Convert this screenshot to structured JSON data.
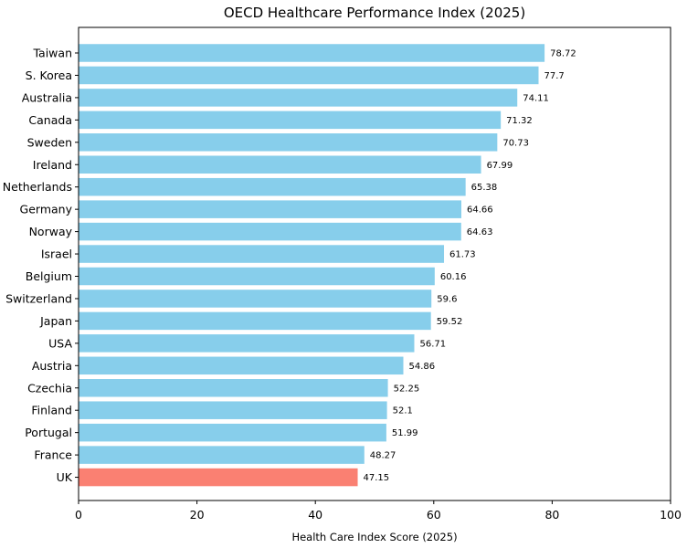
{
  "chart_data": {
    "type": "bar",
    "orientation": "horizontal",
    "title": "OECD Healthcare Performance Index (2025)",
    "xlabel": "Health Care Index Score (2025)",
    "ylabel": "",
    "xlim": [
      0,
      100
    ],
    "xticks": [
      "0",
      "20",
      "40",
      "60",
      "80",
      "100"
    ],
    "grid": false,
    "categories": [
      "Taiwan",
      "S. Korea",
      "Australia",
      "Canada",
      "Sweden",
      "Ireland",
      "Netherlands",
      "Germany",
      "Norway",
      "Israel",
      "Belgium",
      "Switzerland",
      "Japan",
      "USA",
      "Austria",
      "Czechia",
      "Finland",
      "Portugal",
      "France",
      "UK"
    ],
    "values": [
      78.72,
      77.7,
      74.11,
      71.32,
      70.73,
      67.99,
      65.38,
      64.66,
      64.63,
      61.73,
      60.16,
      59.6,
      59.52,
      56.71,
      54.86,
      52.25,
      52.1,
      51.99,
      48.27,
      47.15
    ],
    "value_labels": [
      "78.72",
      "77.7",
      "74.11",
      "71.32",
      "70.73",
      "67.99",
      "65.38",
      "64.66",
      "64.63",
      "61.73",
      "60.16",
      "59.6",
      "59.52",
      "56.71",
      "54.86",
      "52.25",
      "52.1",
      "51.99",
      "48.27",
      "47.15"
    ],
    "colors": {
      "default": "#87CEEB",
      "highlight": "#FA8072",
      "highlight_category": "UK"
    }
  }
}
